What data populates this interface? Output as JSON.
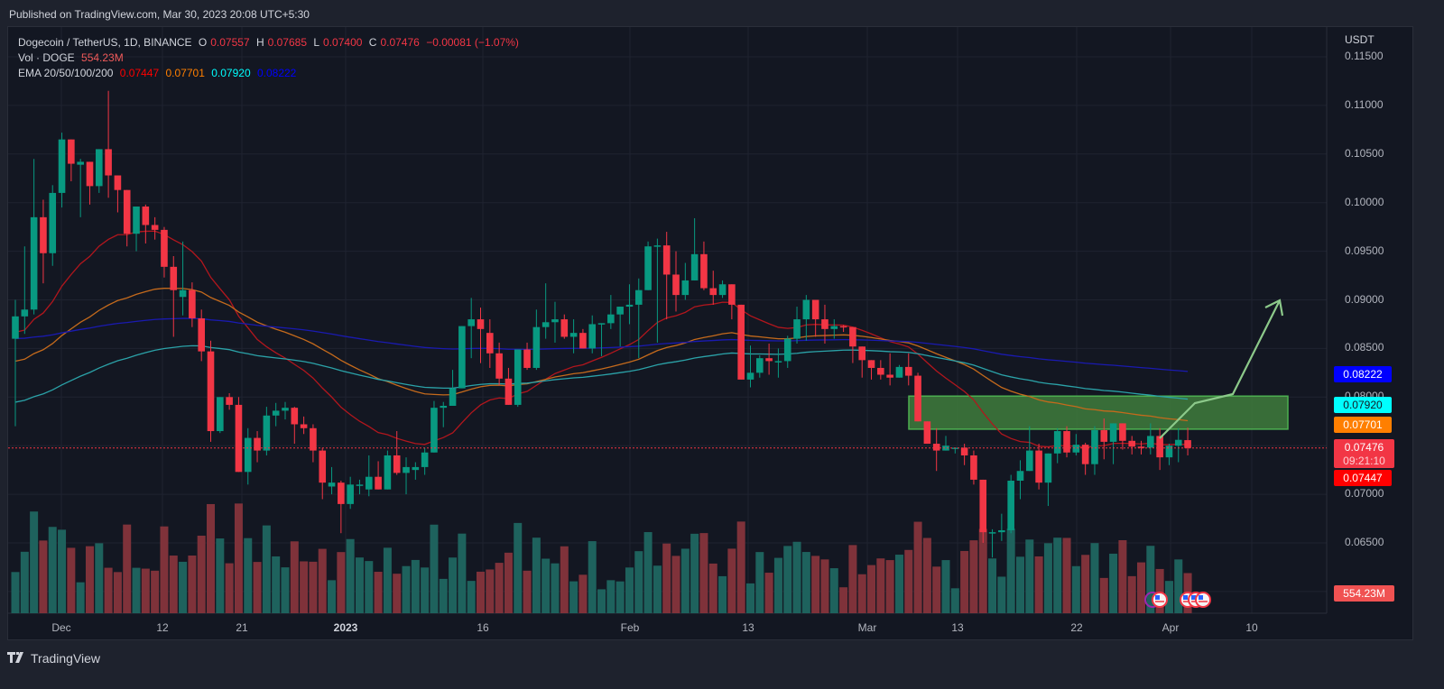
{
  "header": {
    "published": "Published on TradingView.com, Mar 30, 2023 20:08 UTC+5:30"
  },
  "legend": {
    "symbol": "Dogecoin / TetherUS, 1D, BINANCE",
    "open_label": "O",
    "open": "0.07557",
    "high_label": "H",
    "high": "0.07685",
    "low_label": "L",
    "low": "0.07400",
    "close_label": "C",
    "close": "0.07476",
    "change": "−0.00081 (−1.07%)",
    "vol_label": "Vol · DOGE",
    "vol_value": "554.23M",
    "ema_label": "EMA 20/50/100/200",
    "ema20": "0.07447",
    "ema50": "0.07701",
    "ema100": "0.07920",
    "ema200": "0.08222"
  },
  "price_axis": {
    "currency": "USDT",
    "ticks": [
      "0.11500",
      "0.11000",
      "0.10500",
      "0.10000",
      "0.09500",
      "0.09000",
      "0.08500",
      "0.08000",
      "0.07000",
      "0.06500"
    ]
  },
  "price_tags": {
    "ema200": {
      "value": "0.08222",
      "bg": "#0000ff",
      "fg": "#ffffff"
    },
    "ema100": {
      "value": "0.07920",
      "bg": "#00ffff",
      "fg": "#131722"
    },
    "ema50": {
      "value": "0.07701",
      "bg": "#ff7f00",
      "fg": "#ffffff"
    },
    "last_price": {
      "value": "0.07476",
      "countdown": "09:21:10",
      "bg": "#f23645",
      "fg": "#ffffff"
    },
    "ema20": {
      "value": "0.07447",
      "bg": "#ff0000",
      "fg": "#ffffff"
    },
    "volume": {
      "value": "554.23M",
      "bg": "#f05252",
      "fg": "#ffffff"
    }
  },
  "time_axis": {
    "ticks": [
      {
        "label": "Dec",
        "x": 68
      },
      {
        "label": "12",
        "x": 180
      },
      {
        "label": "21",
        "x": 268
      },
      {
        "label": "2023",
        "x": 383,
        "bold": true
      },
      {
        "label": "16",
        "x": 535
      },
      {
        "label": "Feb",
        "x": 698
      },
      {
        "label": "13",
        "x": 829
      },
      {
        "label": "Mar",
        "x": 961
      },
      {
        "label": "13",
        "x": 1061
      },
      {
        "label": "22",
        "x": 1193
      },
      {
        "label": "Apr",
        "x": 1297
      },
      {
        "label": "10",
        "x": 1387
      }
    ]
  },
  "footer": {
    "brand": "TradingView",
    "logo": "tv-logo-icon"
  },
  "colors": {
    "up": "#089981",
    "down": "#f23645",
    "vol_up": "#1e625d",
    "vol_down": "#7f323a",
    "ema20": "#b2161d",
    "ema50": "#c56a1c",
    "ema100": "#2ba2a8",
    "ema200": "#1a1ab0",
    "zone": "#3f7d3c",
    "arrow": "#8cc98a"
  },
  "chart_data": {
    "type": "candlestick",
    "title": "Dogecoin / TetherUS, 1D, BINANCE",
    "xlabel": "",
    "ylabel": "USDT",
    "ylim": [
      0.062,
      0.116
    ],
    "grid": true,
    "legend_position": "top-left",
    "x_start": "2022-11-28",
    "x_end": "2023-03-30",
    "indicators": [
      "EMA 20",
      "EMA 50",
      "EMA 100",
      "EMA 200",
      "Volume"
    ],
    "last": {
      "open": 0.07557,
      "high": 0.07685,
      "low": 0.074,
      "close": 0.07476,
      "volume": "554.23M"
    },
    "ema_latest": {
      "ema20": 0.07447,
      "ema50": 0.07701,
      "ema100": 0.0792,
      "ema200": 0.08222
    },
    "annotations": [
      {
        "type": "rectangle",
        "label": "resistance zone",
        "y_top": 0.0801,
        "y_bottom": 0.0767,
        "x_start": "2023-03-04",
        "x_end": "2023-04-14"
      },
      {
        "type": "polyline-arrow",
        "label": "projected path",
        "points": [
          [
            "2023-03-31",
            0.0756
          ],
          [
            "2023-04-05",
            0.0791
          ],
          [
            "2023-04-09",
            0.0802
          ],
          [
            "2023-04-14",
            0.0898
          ]
        ]
      }
    ],
    "candles": [
      [
        0.086,
        0.09,
        0.077,
        0.0883
      ],
      [
        0.0883,
        0.0955,
        0.0865,
        0.089
      ],
      [
        0.089,
        0.1045,
        0.0885,
        0.0985
      ],
      [
        0.0985,
        0.1003,
        0.0917,
        0.0948
      ],
      [
        0.0948,
        0.1018,
        0.0935,
        0.101
      ],
      [
        0.101,
        0.1072,
        0.0995,
        0.1065
      ],
      [
        0.1065,
        0.1057,
        0.1022,
        0.104
      ],
      [
        0.1039,
        0.1045,
        0.0985,
        0.1042
      ],
      [
        0.1042,
        0.1025,
        0.0998,
        0.1017
      ],
      [
        0.1017,
        0.1052,
        0.101,
        0.1055
      ],
      [
        0.1055,
        0.1115,
        0.1005,
        0.1028
      ],
      [
        0.1028,
        0.1015,
        0.099,
        0.1013
      ],
      [
        0.1013,
        0.1012,
        0.0955,
        0.0968
      ],
      [
        0.0968,
        0.099,
        0.095,
        0.0996
      ],
      [
        0.0996,
        0.0998,
        0.0958,
        0.0977
      ],
      [
        0.0977,
        0.0985,
        0.0962,
        0.0972
      ],
      [
        0.0972,
        0.0975,
        0.0923,
        0.0934
      ],
      [
        0.0934,
        0.0945,
        0.0862,
        0.091
      ],
      [
        0.0903,
        0.096,
        0.0884,
        0.091
      ],
      [
        0.091,
        0.0918,
        0.0872,
        0.0881
      ],
      [
        0.0881,
        0.089,
        0.0837,
        0.0847
      ],
      [
        0.0847,
        0.0858,
        0.0754,
        0.0765
      ],
      [
        0.0765,
        0.08,
        0.0763,
        0.08
      ],
      [
        0.08,
        0.0804,
        0.0787,
        0.0792
      ],
      [
        0.0792,
        0.08,
        0.0735,
        0.0723
      ],
      [
        0.0723,
        0.0768,
        0.071,
        0.0758
      ],
      [
        0.0758,
        0.0765,
        0.0733,
        0.0745
      ],
      [
        0.0745,
        0.079,
        0.074,
        0.0781
      ],
      [
        0.0781,
        0.0794,
        0.077,
        0.0786
      ],
      [
        0.0786,
        0.0795,
        0.0777,
        0.0789
      ],
      [
        0.0789,
        0.079,
        0.0752,
        0.0772
      ],
      [
        0.0772,
        0.078,
        0.0762,
        0.0768
      ],
      [
        0.0768,
        0.0772,
        0.0733,
        0.0745
      ],
      [
        0.0745,
        0.0748,
        0.0695,
        0.0712
      ],
      [
        0.0708,
        0.0728,
        0.07,
        0.0712
      ],
      [
        0.0712,
        0.0714,
        0.066,
        0.069
      ],
      [
        0.069,
        0.0718,
        0.0685,
        0.071
      ],
      [
        0.071,
        0.0715,
        0.07,
        0.071
      ],
      [
        0.0705,
        0.074,
        0.0698,
        0.0718
      ],
      [
        0.0718,
        0.0734,
        0.0705,
        0.0705
      ],
      [
        0.0705,
        0.0745,
        0.0705,
        0.074
      ],
      [
        0.074,
        0.0765,
        0.072,
        0.0722
      ],
      [
        0.0722,
        0.0738,
        0.07,
        0.0728
      ],
      [
        0.0725,
        0.0733,
        0.0715,
        0.0728
      ],
      [
        0.0728,
        0.0748,
        0.072,
        0.0743
      ],
      [
        0.0743,
        0.0796,
        0.075,
        0.0789
      ],
      [
        0.0789,
        0.0795,
        0.0769,
        0.0791
      ],
      [
        0.0791,
        0.0828,
        0.0795,
        0.0809
      ],
      [
        0.0809,
        0.086,
        0.0813,
        0.0873
      ],
      [
        0.0873,
        0.0902,
        0.084,
        0.088
      ],
      [
        0.088,
        0.0892,
        0.0835,
        0.087
      ],
      [
        0.0866,
        0.088,
        0.083,
        0.0845
      ],
      [
        0.0845,
        0.0856,
        0.0812,
        0.0819
      ],
      [
        0.0819,
        0.083,
        0.0792,
        0.0792
      ],
      [
        0.0792,
        0.0847,
        0.079,
        0.0849
      ],
      [
        0.0849,
        0.0856,
        0.0828,
        0.083
      ],
      [
        0.083,
        0.089,
        0.0828,
        0.0872
      ],
      [
        0.0872,
        0.0917,
        0.086,
        0.0877
      ],
      [
        0.0877,
        0.0898,
        0.0856,
        0.088
      ],
      [
        0.088,
        0.0885,
        0.086,
        0.0862
      ],
      [
        0.0862,
        0.088,
        0.0845,
        0.0866
      ],
      [
        0.0866,
        0.087,
        0.085,
        0.085
      ],
      [
        0.085,
        0.0884,
        0.0845,
        0.0875
      ],
      [
        0.0875,
        0.0876,
        0.0842,
        0.0876
      ],
      [
        0.0876,
        0.0905,
        0.087,
        0.0885
      ],
      [
        0.0885,
        0.0892,
        0.0852,
        0.0893
      ],
      [
        0.0893,
        0.0916,
        0.0875,
        0.0895
      ],
      [
        0.0895,
        0.0922,
        0.084,
        0.091
      ],
      [
        0.091,
        0.096,
        0.092,
        0.0955
      ],
      [
        0.0955,
        0.0963,
        0.0856,
        0.0956
      ],
      [
        0.0956,
        0.097,
        0.088,
        0.0926
      ],
      [
        0.0926,
        0.095,
        0.0888,
        0.0905
      ],
      [
        0.0905,
        0.0938,
        0.09,
        0.092
      ],
      [
        0.092,
        0.0984,
        0.0923,
        0.0947
      ],
      [
        0.0947,
        0.096,
        0.091,
        0.0912
      ],
      [
        0.0912,
        0.093,
        0.0895,
        0.0905
      ],
      [
        0.0905,
        0.092,
        0.0902,
        0.0916
      ],
      [
        0.0916,
        0.0915,
        0.088,
        0.0895
      ],
      [
        0.0895,
        0.089,
        0.082,
        0.0818
      ],
      [
        0.0818,
        0.0853,
        0.081,
        0.0825
      ],
      [
        0.0825,
        0.0843,
        0.082,
        0.084
      ],
      [
        0.084,
        0.0855,
        0.0823,
        0.0837
      ],
      [
        0.0837,
        0.085,
        0.082,
        0.0837
      ],
      [
        0.0837,
        0.0863,
        0.083,
        0.086
      ],
      [
        0.086,
        0.0893,
        0.0855,
        0.088
      ],
      [
        0.088,
        0.0905,
        0.0858,
        0.09
      ],
      [
        0.09,
        0.089,
        0.0862,
        0.088
      ],
      [
        0.088,
        0.0895,
        0.0855,
        0.087
      ],
      [
        0.087,
        0.088,
        0.086,
        0.0873
      ],
      [
        0.0873,
        0.0874,
        0.0867,
        0.0872
      ],
      [
        0.0872,
        0.086,
        0.0835,
        0.0852
      ],
      [
        0.0852,
        0.085,
        0.082,
        0.0838
      ],
      [
        0.0838,
        0.083,
        0.0818,
        0.083
      ],
      [
        0.083,
        0.0838,
        0.0818,
        0.0823
      ],
      [
        0.0823,
        0.0845,
        0.0812,
        0.082
      ],
      [
        0.082,
        0.0833,
        0.0825,
        0.0831
      ],
      [
        0.0831,
        0.0845,
        0.0812,
        0.0822
      ],
      [
        0.0822,
        0.0825,
        0.0787,
        0.0775
      ],
      [
        0.0775,
        0.0765,
        0.0755,
        0.0752
      ],
      [
        0.0752,
        0.0768,
        0.0724,
        0.0745
      ],
      [
        0.0745,
        0.076,
        0.0746,
        0.075
      ],
      [
        0.0748,
        0.0747,
        0.0742,
        0.0748
      ],
      [
        0.0748,
        0.0752,
        0.073,
        0.074
      ],
      [
        0.074,
        0.0745,
        0.071,
        0.0715
      ],
      [
        0.0715,
        0.0713,
        0.065,
        0.0661
      ],
      [
        0.0661,
        0.0664,
        0.0635,
        0.0661
      ],
      [
        0.0661,
        0.068,
        0.0652,
        0.0663
      ],
      [
        0.0663,
        0.072,
        0.066,
        0.0714
      ],
      [
        0.0714,
        0.0735,
        0.0695,
        0.0724
      ],
      [
        0.0724,
        0.077,
        0.073,
        0.0745
      ],
      [
        0.0745,
        0.0752,
        0.0705,
        0.0712
      ],
      [
        0.0712,
        0.074,
        0.0688,
        0.0742
      ],
      [
        0.0742,
        0.0768,
        0.0732,
        0.0765
      ],
      [
        0.0765,
        0.077,
        0.0738,
        0.0743
      ],
      [
        0.0743,
        0.0762,
        0.074,
        0.0751
      ],
      [
        0.0751,
        0.0753,
        0.072,
        0.0731
      ],
      [
        0.0731,
        0.077,
        0.072,
        0.0766
      ],
      [
        0.0766,
        0.0778,
        0.0736,
        0.0754
      ],
      [
        0.0754,
        0.0772,
        0.0731,
        0.0773
      ],
      [
        0.0773,
        0.0768,
        0.0746,
        0.0755
      ],
      [
        0.0755,
        0.076,
        0.0741,
        0.0749
      ],
      [
        0.0749,
        0.0755,
        0.0741,
        0.0748
      ],
      [
        0.0748,
        0.0773,
        0.0741,
        0.076
      ],
      [
        0.076,
        0.0768,
        0.0725,
        0.0738
      ],
      [
        0.0738,
        0.0752,
        0.073,
        0.075
      ],
      [
        0.075,
        0.0768,
        0.0733,
        0.0756
      ],
      [
        0.07557,
        0.07685,
        0.074,
        0.07476
      ]
    ]
  }
}
